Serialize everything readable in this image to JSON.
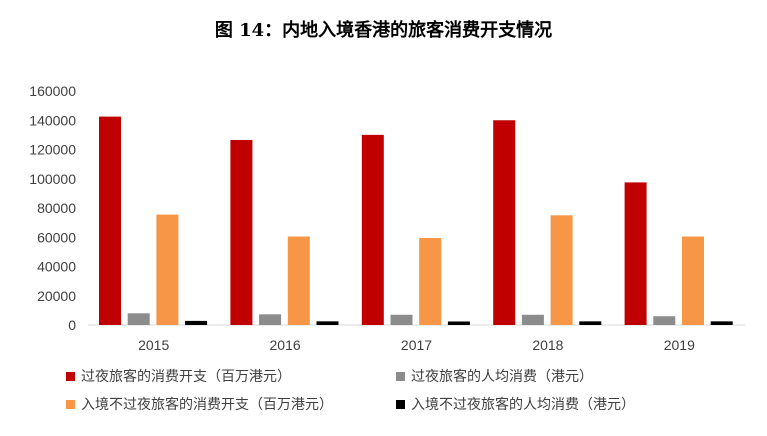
{
  "chart_data": {
    "type": "bar",
    "title": "图 14：内地入境香港的旅客消费开支情况",
    "categories": [
      "2015",
      "2016",
      "2017",
      "2018",
      "2019"
    ],
    "ylim": [
      0,
      160000
    ],
    "yticks": [
      0,
      20000,
      40000,
      60000,
      80000,
      100000,
      120000,
      140000,
      160000
    ],
    "grid": false,
    "legend_position": "bottom",
    "series": [
      {
        "name": "过夜旅客的消费开支（百万港元）",
        "color": "#C00000",
        "values": [
          142500,
          126500,
          130000,
          140000,
          97500
        ]
      },
      {
        "name": "过夜旅客的人均消费（港元）",
        "color": "#8C8C8C",
        "values": [
          8000,
          7300,
          7000,
          7000,
          6000
        ]
      },
      {
        "name": "入境不过夜旅客的消费开支（百万港元）",
        "color": "#F79646",
        "values": [
          75500,
          60500,
          59500,
          75000,
          60500
        ]
      },
      {
        "name": "入境不过夜旅客的人均消费（港元）",
        "color": "#000000",
        "values": [
          2800,
          2500,
          2400,
          2500,
          2500
        ]
      }
    ]
  }
}
